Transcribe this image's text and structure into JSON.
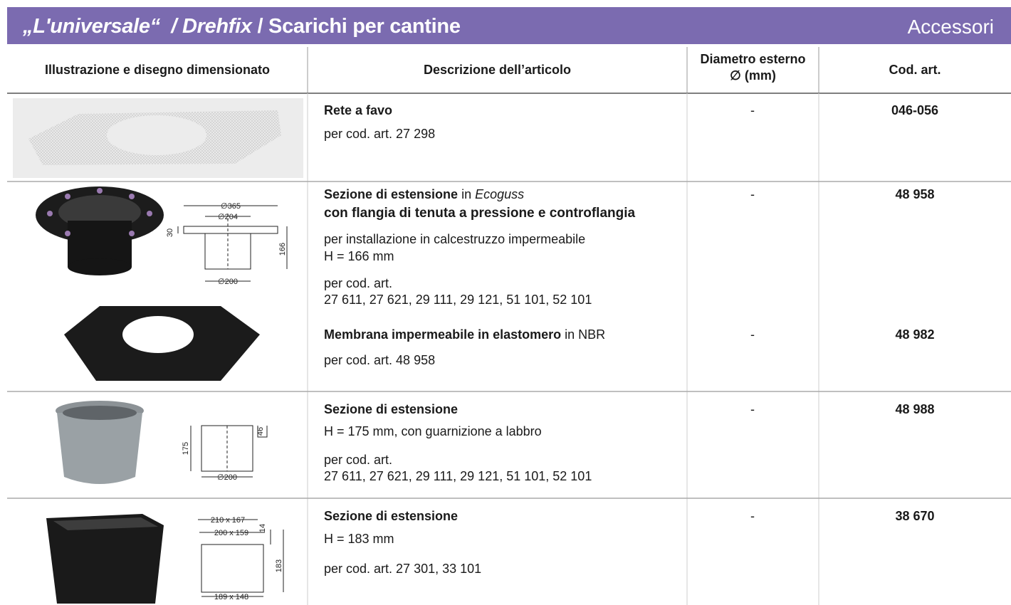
{
  "header": {
    "title": {
      "brand": "„L'universale“",
      "sep": "/",
      "product": "Drehfix",
      "rest": "/ Scarichi per cantine"
    },
    "section": "Accessori"
  },
  "table": {
    "columns": [
      "Illustrazione e disegno dimensionato",
      "Descrizione dell’articolo",
      [
        "Diametro esterno",
        "∅ (mm)"
      ],
      "Cod. art."
    ],
    "rows": [
      {
        "items": [
          {
            "name": "Rete a favo",
            "lines": [
              "per cod. art. 27 298"
            ],
            "diameter": "-",
            "code": "046-056"
          }
        ]
      },
      {
        "drawing": [
          "∅365",
          "∅204",
          "30",
          "166",
          "∅200"
        ],
        "items": [
          {
            "name": "Sezione di estensione",
            "name_suffix": "in",
            "material": "Ecoguss",
            "subtitle": "con flangia di tenuta a pressione e controflangia",
            "lines": [
              "per installazione in calcestruzzo impermeabile",
              "H = 166 mm",
              "per cod. art.",
              "27 611, 27 621, 29 111, 29 121, 51 101, 52 101"
            ],
            "diameter": "-",
            "code": "48 958"
          },
          {
            "name": "Membrana impermeabile in elastomero",
            "name_suffix": "in NBR",
            "lines": [
              "per cod. art. 48 958"
            ],
            "diameter": "-",
            "code": "48 982"
          }
        ]
      },
      {
        "drawing": [
          "175",
          "46",
          "∅200"
        ],
        "items": [
          {
            "name": "Sezione di estensione",
            "lines": [
              "H = 175 mm, con guarnizione a labbro",
              "per cod. art.",
              "27 611, 27 621, 29 111, 29 121, 51 101, 52 101"
            ],
            "diameter": "-",
            "code": "48 988"
          }
        ]
      },
      {
        "drawing": [
          "210 x 167",
          "200 x 159",
          "14",
          "183",
          "189 x 148"
        ],
        "items": [
          {
            "name": "Sezione di estensione",
            "lines": [
              "H = 183 mm",
              "per cod. art. 27 301, 33 101"
            ],
            "diameter": "-",
            "code": "38 670"
          }
        ]
      }
    ]
  }
}
